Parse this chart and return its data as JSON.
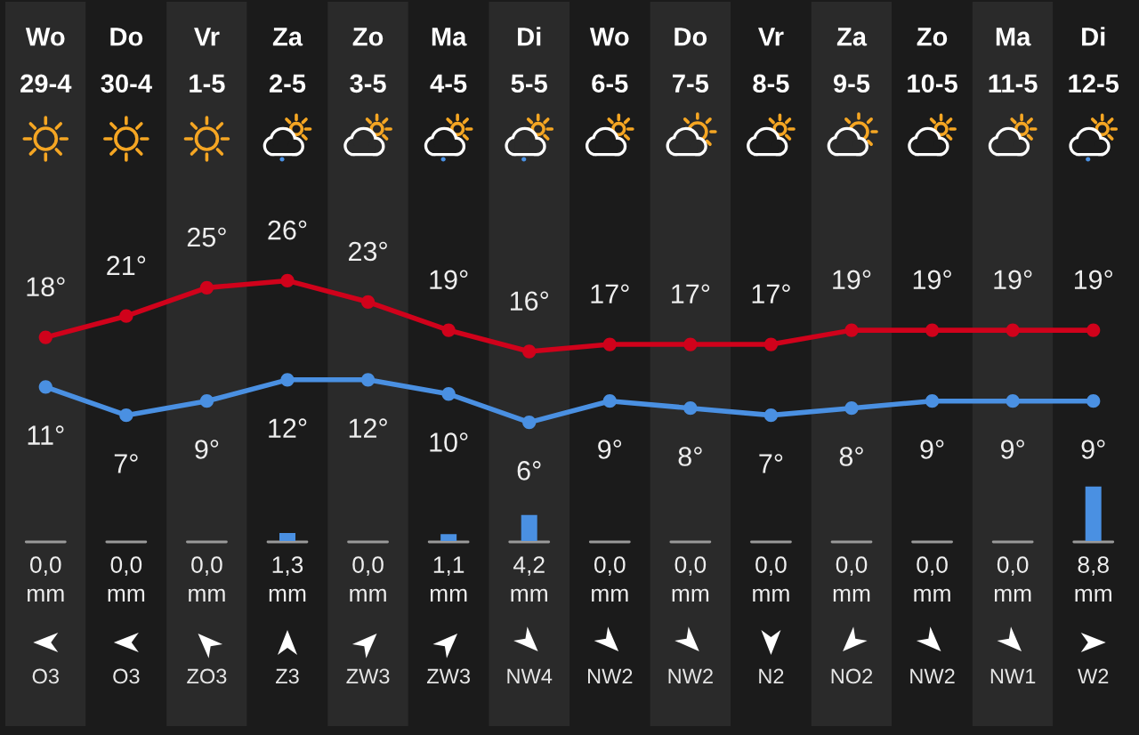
{
  "chart_data": [
    {
      "type": "line",
      "categories": [
        "Wo\n29-4",
        "Do\n30-4",
        "Vr\n1-5",
        "Za\n2-5",
        "Zo\n3-5",
        "Ma\n4-5",
        "Di\n5-5",
        "Wo\n6-5",
        "Do\n7-5",
        "Vr\n8-5",
        "Za\n9-5",
        "Zo\n10-5",
        "Ma\n11-5",
        "Di\n12-5"
      ],
      "series": [
        {
          "color": "#d0021b",
          "values": [
            18,
            21,
            25,
            26,
            23,
            19,
            16,
            17,
            17,
            17,
            19,
            19,
            19,
            19
          ],
          "value_labels": [
            "18°",
            "21°",
            "25°",
            "26°",
            "23°",
            "19°",
            "16°",
            "17°",
            "17°",
            "17°",
            "19°",
            "19°",
            "19°",
            "19°"
          ]
        },
        {
          "color": "#4a90e2",
          "values": [
            11,
            7,
            9,
            12,
            12,
            10,
            6,
            9,
            8,
            7,
            8,
            9,
            9,
            9
          ],
          "value_labels": [
            "11°",
            "7°",
            "9°",
            "12°",
            "12°",
            "10°",
            "6°",
            "9°",
            "8°",
            "7°",
            "8°",
            "9°",
            "9°",
            "9°"
          ]
        }
      ],
      "marker": "circle",
      "line_style": "solid",
      "tick_labels": "x"
    },
    {
      "type": "bar",
      "categories": [
        null,
        null,
        null,
        null,
        null,
        null,
        null,
        null,
        null,
        null,
        null,
        null,
        null,
        null
      ],
      "color": "#4a90e2",
      "values": [
        0,
        0,
        0,
        1.3,
        0,
        1.1,
        4.2,
        0,
        0,
        0,
        0,
        0,
        0,
        8.8
      ],
      "value_labels": [
        "0,0\nmm",
        "0,0\nmm",
        "0,0\nmm",
        "1,3\nmm",
        "0,0\nmm",
        "1,1\nmm",
        "4,2\nmm",
        "0,0\nmm",
        "0,0\nmm",
        "0,0\nmm",
        "0,0\nmm",
        "0,0\nmm",
        "0,0\nmm",
        "8,8\nmm"
      ],
      "annotations": [
        "O3",
        "O3",
        "ZO3",
        "Z3",
        "ZW3",
        "ZW3",
        "NW4",
        "NW2",
        "NW2",
        "N2",
        "NO2",
        "NW2",
        "NW1",
        "W2"
      ]
    }
  ]
}
